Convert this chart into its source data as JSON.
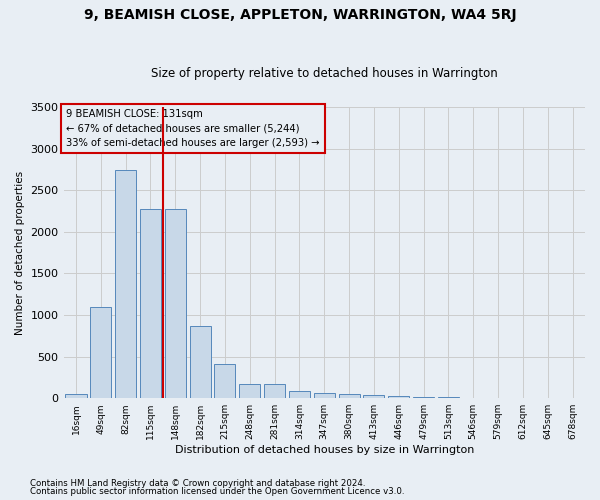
{
  "title": "9, BEAMISH CLOSE, APPLETON, WARRINGTON, WA4 5RJ",
  "subtitle": "Size of property relative to detached houses in Warrington",
  "xlabel": "Distribution of detached houses by size in Warrington",
  "ylabel": "Number of detached properties",
  "categories": [
    "16sqm",
    "49sqm",
    "82sqm",
    "115sqm",
    "148sqm",
    "182sqm",
    "215sqm",
    "248sqm",
    "281sqm",
    "314sqm",
    "347sqm",
    "380sqm",
    "413sqm",
    "446sqm",
    "479sqm",
    "513sqm",
    "546sqm",
    "579sqm",
    "612sqm",
    "645sqm",
    "678sqm"
  ],
  "values": [
    50,
    1100,
    2740,
    2280,
    2275,
    865,
    415,
    170,
    165,
    90,
    60,
    50,
    35,
    25,
    20,
    10,
    8,
    5,
    4,
    3,
    3
  ],
  "bar_color": "#c8d8e8",
  "bar_edge_color": "#5588bb",
  "marker_color": "#cc0000",
  "annotation_line1": "9 BEAMISH CLOSE: 131sqm",
  "annotation_line2": "← 67% of detached houses are smaller (5,244)",
  "annotation_line3": "33% of semi-detached houses are larger (2,593) →",
  "annotation_box_color": "#cc0000",
  "ylim": [
    0,
    3500
  ],
  "yticks": [
    0,
    500,
    1000,
    1500,
    2000,
    2500,
    3000,
    3500
  ],
  "grid_color": "#cccccc",
  "bg_color": "#e8eef4",
  "footer1": "Contains HM Land Registry data © Crown copyright and database right 2024.",
  "footer2": "Contains public sector information licensed under the Open Government Licence v3.0."
}
